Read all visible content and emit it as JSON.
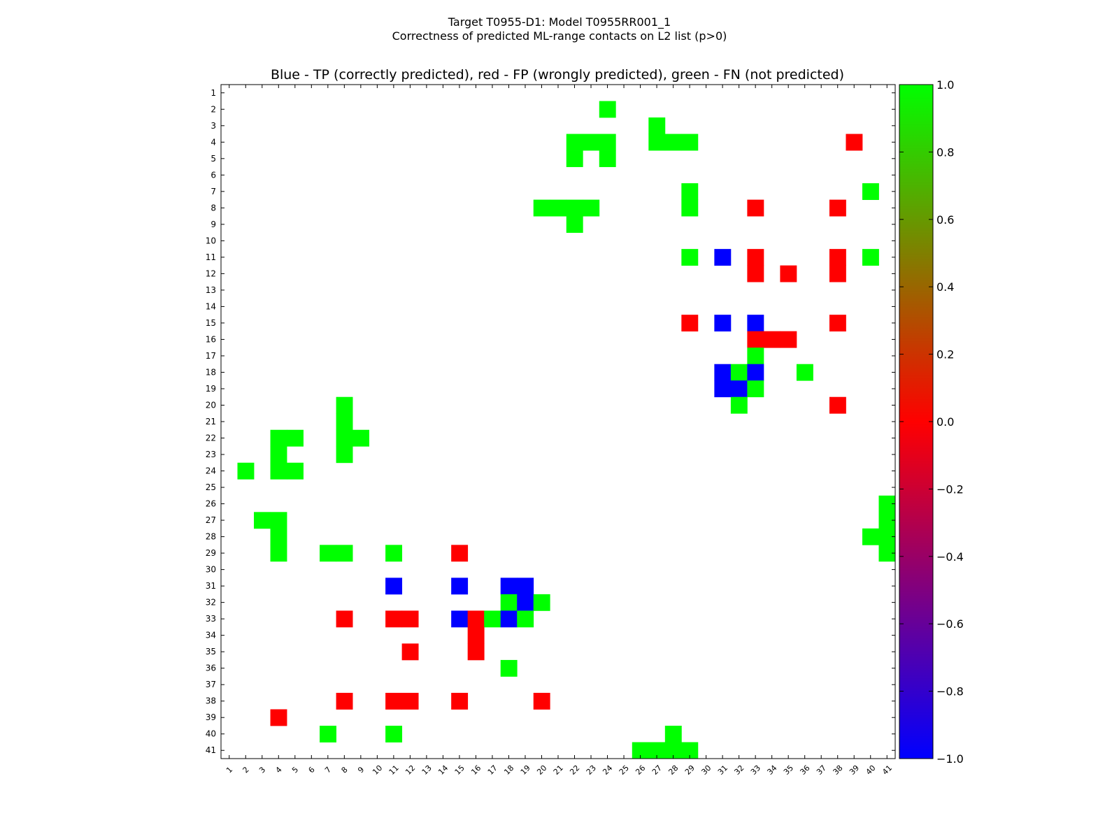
{
  "figure": {
    "suptitle_line1": "Target T0955-D1: Model T0955RR001_1",
    "suptitle_line2": "Correctness of predicted ML-range contacts on L2 list (p>0)"
  },
  "chart_data": {
    "type": "heatmap",
    "title": "Blue - TP (correctly predicted), red - FP (wrongly predicted), green - FN (not predicted)",
    "xlabel": "",
    "ylabel": "",
    "x_range": [
      1,
      41
    ],
    "y_range": [
      1,
      41
    ],
    "x_ticks": [
      "1",
      "2",
      "3",
      "4",
      "5",
      "6",
      "7",
      "8",
      "9",
      "10",
      "11",
      "12",
      "13",
      "14",
      "15",
      "16",
      "17",
      "18",
      "19",
      "20",
      "21",
      "22",
      "23",
      "24",
      "25",
      "26",
      "27",
      "28",
      "29",
      "30",
      "31",
      "32",
      "33",
      "34",
      "35",
      "36",
      "37",
      "38",
      "39",
      "40",
      "41"
    ],
    "y_ticks": [
      "1",
      "2",
      "3",
      "4",
      "5",
      "6",
      "7",
      "8",
      "9",
      "10",
      "11",
      "12",
      "13",
      "14",
      "15",
      "16",
      "17",
      "18",
      "19",
      "20",
      "21",
      "22",
      "23",
      "24",
      "25",
      "26",
      "27",
      "28",
      "29",
      "30",
      "31",
      "32",
      "33",
      "34",
      "35",
      "36",
      "37",
      "38",
      "39",
      "40",
      "41"
    ],
    "y_axis_inverted": true,
    "legend": "none",
    "grid": false,
    "colorbar": {
      "min": -1.0,
      "max": 1.0,
      "ticks": [
        "−1.0",
        "−0.8",
        "−0.6",
        "−0.4",
        "−0.2",
        "0.0",
        "0.2",
        "0.4",
        "0.6",
        "0.8",
        "1.0"
      ],
      "tick_values": [
        -1.0,
        -0.8,
        -0.6,
        -0.4,
        -0.2,
        0.0,
        0.2,
        0.4,
        0.6,
        0.8,
        1.0
      ],
      "colors": [
        "#0000ff",
        "#ff0000",
        "#00ff00"
      ]
    },
    "value_meaning": {
      "-1": "TP (blue)",
      "0": "FP (red)",
      "0.8": "FN (green)"
    },
    "cells": [
      {
        "x": 24,
        "y": 2,
        "v": 0.8
      },
      {
        "x": 27,
        "y": 3,
        "v": 0.8
      },
      {
        "x": 22,
        "y": 4,
        "v": 0.8
      },
      {
        "x": 23,
        "y": 4,
        "v": 0.8
      },
      {
        "x": 24,
        "y": 4,
        "v": 0.8
      },
      {
        "x": 27,
        "y": 4,
        "v": 0.8
      },
      {
        "x": 28,
        "y": 4,
        "v": 0.8
      },
      {
        "x": 29,
        "y": 4,
        "v": 0.8
      },
      {
        "x": 39,
        "y": 4,
        "v": 0
      },
      {
        "x": 22,
        "y": 5,
        "v": 0.8
      },
      {
        "x": 24,
        "y": 5,
        "v": 0.8
      },
      {
        "x": 29,
        "y": 7,
        "v": 0.8
      },
      {
        "x": 40,
        "y": 7,
        "v": 0.8
      },
      {
        "x": 20,
        "y": 8,
        "v": 0.8
      },
      {
        "x": 21,
        "y": 8,
        "v": 0.8
      },
      {
        "x": 22,
        "y": 8,
        "v": 0.8
      },
      {
        "x": 23,
        "y": 8,
        "v": 0.8
      },
      {
        "x": 29,
        "y": 8,
        "v": 0.8
      },
      {
        "x": 33,
        "y": 8,
        "v": 0
      },
      {
        "x": 38,
        "y": 8,
        "v": 0
      },
      {
        "x": 22,
        "y": 9,
        "v": 0.8
      },
      {
        "x": 29,
        "y": 11,
        "v": 0.8
      },
      {
        "x": 31,
        "y": 11,
        "v": -1
      },
      {
        "x": 33,
        "y": 11,
        "v": 0
      },
      {
        "x": 38,
        "y": 11,
        "v": 0
      },
      {
        "x": 40,
        "y": 11,
        "v": 0.8
      },
      {
        "x": 33,
        "y": 12,
        "v": 0
      },
      {
        "x": 35,
        "y": 12,
        "v": 0
      },
      {
        "x": 38,
        "y": 12,
        "v": 0
      },
      {
        "x": 29,
        "y": 15,
        "v": 0
      },
      {
        "x": 31,
        "y": 15,
        "v": -1
      },
      {
        "x": 33,
        "y": 15,
        "v": -1
      },
      {
        "x": 38,
        "y": 15,
        "v": 0
      },
      {
        "x": 33,
        "y": 16,
        "v": 0
      },
      {
        "x": 34,
        "y": 16,
        "v": 0
      },
      {
        "x": 35,
        "y": 16,
        "v": 0
      },
      {
        "x": 33,
        "y": 17,
        "v": 0.8
      },
      {
        "x": 31,
        "y": 18,
        "v": -1
      },
      {
        "x": 32,
        "y": 18,
        "v": 0.8
      },
      {
        "x": 33,
        "y": 18,
        "v": -1
      },
      {
        "x": 36,
        "y": 18,
        "v": 0.8
      },
      {
        "x": 31,
        "y": 19,
        "v": -1
      },
      {
        "x": 32,
        "y": 19,
        "v": -1
      },
      {
        "x": 33,
        "y": 19,
        "v": 0.8
      },
      {
        "x": 8,
        "y": 20,
        "v": 0.8
      },
      {
        "x": 32,
        "y": 20,
        "v": 0.8
      },
      {
        "x": 38,
        "y": 20,
        "v": 0
      },
      {
        "x": 8,
        "y": 21,
        "v": 0.8
      },
      {
        "x": 4,
        "y": 22,
        "v": 0.8
      },
      {
        "x": 5,
        "y": 22,
        "v": 0.8
      },
      {
        "x": 8,
        "y": 22,
        "v": 0.8
      },
      {
        "x": 9,
        "y": 22,
        "v": 0.8
      },
      {
        "x": 4,
        "y": 23,
        "v": 0.8
      },
      {
        "x": 8,
        "y": 23,
        "v": 0.8
      },
      {
        "x": 2,
        "y": 24,
        "v": 0.8
      },
      {
        "x": 4,
        "y": 24,
        "v": 0.8
      },
      {
        "x": 5,
        "y": 24,
        "v": 0.8
      },
      {
        "x": 41,
        "y": 26,
        "v": 0.8
      },
      {
        "x": 3,
        "y": 27,
        "v": 0.8
      },
      {
        "x": 4,
        "y": 27,
        "v": 0.8
      },
      {
        "x": 41,
        "y": 27,
        "v": 0.8
      },
      {
        "x": 4,
        "y": 28,
        "v": 0.8
      },
      {
        "x": 40,
        "y": 28,
        "v": 0.8
      },
      {
        "x": 41,
        "y": 28,
        "v": 0.8
      },
      {
        "x": 4,
        "y": 29,
        "v": 0.8
      },
      {
        "x": 7,
        "y": 29,
        "v": 0.8
      },
      {
        "x": 8,
        "y": 29,
        "v": 0.8
      },
      {
        "x": 11,
        "y": 29,
        "v": 0.8
      },
      {
        "x": 15,
        "y": 29,
        "v": 0
      },
      {
        "x": 41,
        "y": 29,
        "v": 0.8
      },
      {
        "x": 11,
        "y": 31,
        "v": -1
      },
      {
        "x": 15,
        "y": 31,
        "v": -1
      },
      {
        "x": 18,
        "y": 31,
        "v": -1
      },
      {
        "x": 19,
        "y": 31,
        "v": -1
      },
      {
        "x": 18,
        "y": 32,
        "v": 0.8
      },
      {
        "x": 19,
        "y": 32,
        "v": -1
      },
      {
        "x": 20,
        "y": 32,
        "v": 0.8
      },
      {
        "x": 8,
        "y": 33,
        "v": 0
      },
      {
        "x": 11,
        "y": 33,
        "v": 0
      },
      {
        "x": 12,
        "y": 33,
        "v": 0
      },
      {
        "x": 15,
        "y": 33,
        "v": -1
      },
      {
        "x": 16,
        "y": 33,
        "v": 0
      },
      {
        "x": 17,
        "y": 33,
        "v": 0.8
      },
      {
        "x": 18,
        "y": 33,
        "v": -1
      },
      {
        "x": 19,
        "y": 33,
        "v": 0.8
      },
      {
        "x": 16,
        "y": 34,
        "v": 0
      },
      {
        "x": 12,
        "y": 35,
        "v": 0
      },
      {
        "x": 16,
        "y": 35,
        "v": 0
      },
      {
        "x": 18,
        "y": 36,
        "v": 0.8
      },
      {
        "x": 8,
        "y": 38,
        "v": 0
      },
      {
        "x": 11,
        "y": 38,
        "v": 0
      },
      {
        "x": 12,
        "y": 38,
        "v": 0
      },
      {
        "x": 15,
        "y": 38,
        "v": 0
      },
      {
        "x": 20,
        "y": 38,
        "v": 0
      },
      {
        "x": 4,
        "y": 39,
        "v": 0
      },
      {
        "x": 7,
        "y": 40,
        "v": 0.8
      },
      {
        "x": 11,
        "y": 40,
        "v": 0.8
      },
      {
        "x": 28,
        "y": 40,
        "v": 0.8
      },
      {
        "x": 26,
        "y": 41,
        "v": 0.8
      },
      {
        "x": 27,
        "y": 41,
        "v": 0.8
      },
      {
        "x": 28,
        "y": 41,
        "v": 0.8
      },
      {
        "x": 29,
        "y": 41,
        "v": 0.8
      }
    ]
  }
}
